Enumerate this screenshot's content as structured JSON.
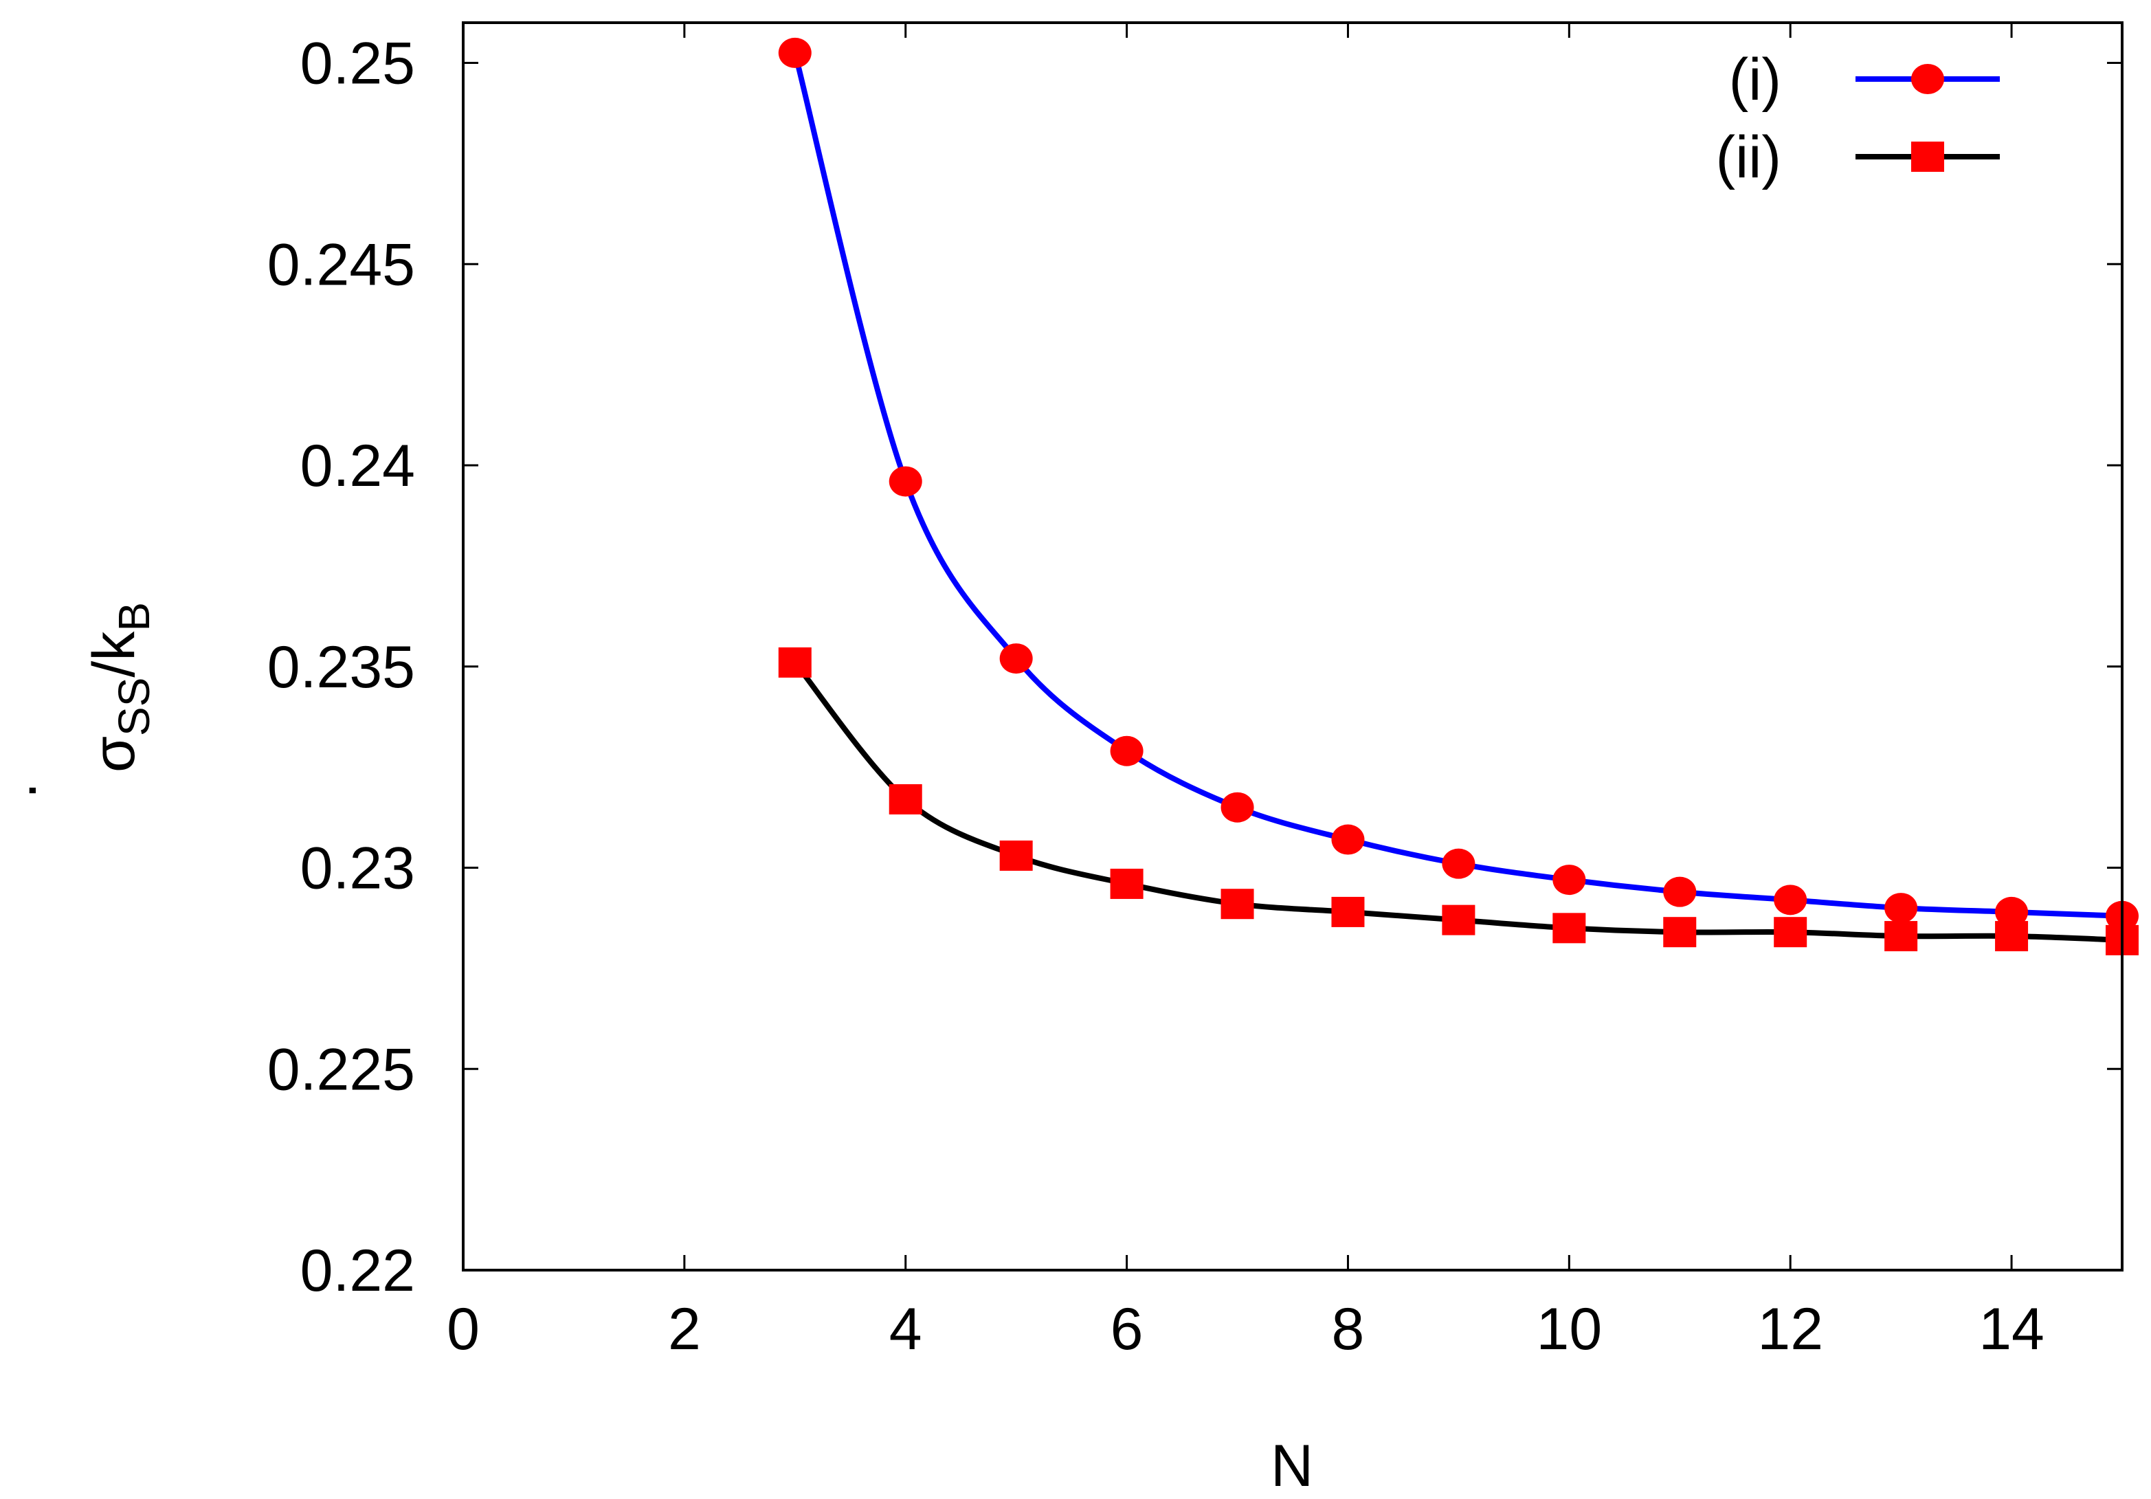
{
  "chart_data": {
    "type": "line",
    "xlabel": "N",
    "ylabel": {
      "symbol": "σ",
      "dot": "·",
      "sub1": "SS",
      "slash": "/k",
      "sub2": "B"
    },
    "xlim": [
      0,
      15
    ],
    "ylim": [
      0.22,
      0.251
    ],
    "xticks": [
      "0",
      "2",
      "4",
      "6",
      "8",
      "10",
      "12",
      "14"
    ],
    "yticks": [
      "0.22",
      "0.225",
      "0.23",
      "0.235",
      "0.24",
      "0.245",
      "0.25"
    ],
    "grid": false,
    "legend": "top-right",
    "x": [
      3,
      4,
      5,
      6,
      7,
      8,
      9,
      10,
      11,
      12,
      13,
      14,
      15
    ],
    "series": [
      {
        "name": "(i)",
        "line_color": "#0000ff",
        "marker": "circle",
        "marker_color": "#ff0000",
        "values": [
          0.25025,
          0.2396,
          0.2352,
          0.2329,
          0.2315,
          0.2307,
          0.2301,
          0.2297,
          0.2294,
          0.2292,
          0.229,
          0.2289,
          0.2288
        ]
      },
      {
        "name": "(ii)",
        "line_color": "#000000",
        "marker": "square",
        "marker_color": "#ff0000",
        "values": [
          0.2351,
          0.2317,
          0.2303,
          0.2296,
          0.2291,
          0.2289,
          0.2287,
          0.2285,
          0.2284,
          0.2284,
          0.2283,
          0.2283,
          0.2282
        ]
      }
    ]
  }
}
